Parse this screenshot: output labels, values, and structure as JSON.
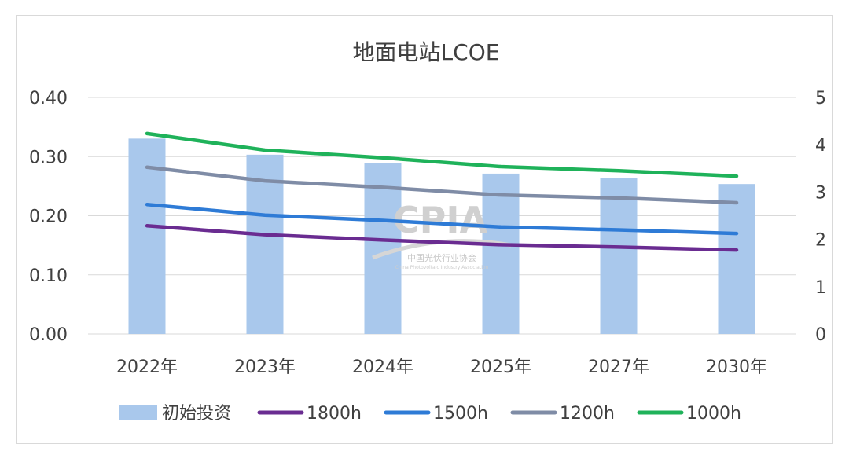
{
  "chart_data": {
    "type": "bar",
    "title": "地面电站LCOE",
    "categories": [
      "2022年",
      "2023年",
      "2024年",
      "2025年",
      "2027年",
      "2030年"
    ],
    "bar_series": {
      "name": "初始投资",
      "axis": "right",
      "values": [
        4.13,
        3.79,
        3.62,
        3.39,
        3.3,
        3.17
      ],
      "color": "#a9c8ec"
    },
    "line_series": [
      {
        "name": "1800h",
        "axis": "left",
        "values": [
          0.183,
          0.168,
          0.159,
          0.151,
          0.147,
          0.142
        ],
        "color": "#6a2c91"
      },
      {
        "name": "1500h",
        "axis": "left",
        "values": [
          0.219,
          0.201,
          0.192,
          0.181,
          0.176,
          0.17
        ],
        "color": "#2e7bd6"
      },
      {
        "name": "1200h",
        "axis": "left",
        "values": [
          0.282,
          0.259,
          0.248,
          0.235,
          0.23,
          0.222
        ],
        "color": "#7f8ca6"
      },
      {
        "name": "1000h",
        "axis": "left",
        "values": [
          0.339,
          0.311,
          0.298,
          0.283,
          0.276,
          0.267
        ],
        "color": "#1fb25a"
      }
    ],
    "left_axis": {
      "min": 0,
      "max": 0.4,
      "ticks": [
        "0.00",
        "0.10",
        "0.20",
        "0.30",
        "0.40"
      ]
    },
    "right_axis": {
      "min": 0,
      "max": 5,
      "ticks": [
        "0",
        "1",
        "2",
        "3",
        "4",
        "5"
      ]
    },
    "grid": true,
    "legend_position": "bottom"
  },
  "watermark": {
    "logo": "CPIA",
    "name": "中国光伏行业协会",
    "english": "China Photovoltaic Industry Association"
  }
}
